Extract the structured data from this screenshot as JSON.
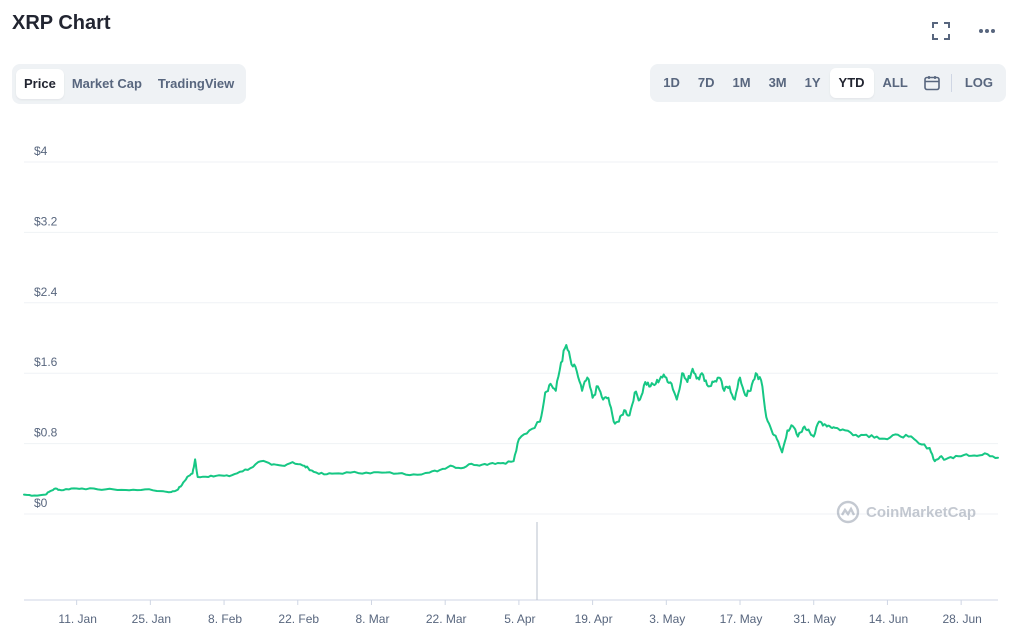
{
  "header": {
    "title": "XRP Chart"
  },
  "top_icons": [
    "fullscreen-icon",
    "more-icon"
  ],
  "view_tabs": [
    {
      "label": "Price",
      "active": true
    },
    {
      "label": "Market Cap",
      "active": false
    },
    {
      "label": "TradingView",
      "active": false
    }
  ],
  "range_tabs": [
    {
      "label": "1D",
      "active": false
    },
    {
      "label": "7D",
      "active": false
    },
    {
      "label": "1M",
      "active": false
    },
    {
      "label": "3M",
      "active": false
    },
    {
      "label": "1Y",
      "active": false
    },
    {
      "label": "YTD",
      "active": true
    },
    {
      "label": "ALL",
      "active": false
    }
  ],
  "log_label": "LOG",
  "watermark": "CoinMarketCap",
  "colors": {
    "line": "#16c784",
    "grid": "#eff2f5",
    "text": "#58667e",
    "accent": "#222531"
  },
  "chart_data": {
    "type": "line",
    "title": "",
    "xlabel": "",
    "ylabel": "",
    "ylim": [
      0,
      4
    ],
    "yticks": [
      {
        "value": 0,
        "label": "$0"
      },
      {
        "value": 0.8,
        "label": "$0.8"
      },
      {
        "value": 1.6,
        "label": "$1.6"
      },
      {
        "value": 2.4,
        "label": "$2.4"
      },
      {
        "value": 3.2,
        "label": "$3.2"
      },
      {
        "value": 4,
        "label": "$4"
      }
    ],
    "xticks": [
      {
        "day": 11,
        "label": "11. Jan"
      },
      {
        "day": 25,
        "label": "25. Jan"
      },
      {
        "day": 39,
        "label": "8. Feb"
      },
      {
        "day": 53,
        "label": "22. Feb"
      },
      {
        "day": 67,
        "label": "8. Mar"
      },
      {
        "day": 81,
        "label": "22. Mar"
      },
      {
        "day": 95,
        "label": "5. Apr"
      },
      {
        "day": 109,
        "label": "19. Apr"
      },
      {
        "day": 123,
        "label": "3. May"
      },
      {
        "day": 137,
        "label": "17. May"
      },
      {
        "day": 151,
        "label": "31. May"
      },
      {
        "day": 165,
        "label": "14. Jun"
      },
      {
        "day": 179,
        "label": "28. Jun"
      }
    ],
    "xrange": [
      1,
      186
    ],
    "grid": true,
    "series": [
      {
        "name": "",
        "points": [
          [
            1,
            0.22
          ],
          [
            3,
            0.21
          ],
          [
            5,
            0.22
          ],
          [
            6,
            0.26
          ],
          [
            7,
            0.29
          ],
          [
            8,
            0.27
          ],
          [
            10,
            0.29
          ],
          [
            12,
            0.29
          ],
          [
            15,
            0.28
          ],
          [
            18,
            0.28
          ],
          [
            21,
            0.27
          ],
          [
            24,
            0.28
          ],
          [
            27,
            0.26
          ],
          [
            29,
            0.25
          ],
          [
            30,
            0.27
          ],
          [
            31,
            0.33
          ],
          [
            32,
            0.42
          ],
          [
            33,
            0.46
          ],
          [
            33.5,
            0.62
          ],
          [
            34,
            0.42
          ],
          [
            36,
            0.42
          ],
          [
            38,
            0.44
          ],
          [
            40,
            0.43
          ],
          [
            42,
            0.48
          ],
          [
            44,
            0.52
          ],
          [
            46,
            0.6
          ],
          [
            48,
            0.56
          ],
          [
            50,
            0.55
          ],
          [
            52,
            0.59
          ],
          [
            54,
            0.55
          ],
          [
            55,
            0.52
          ],
          [
            56,
            0.48
          ],
          [
            58,
            0.45
          ],
          [
            60,
            0.46
          ],
          [
            63,
            0.47
          ],
          [
            66,
            0.47
          ],
          [
            69,
            0.47
          ],
          [
            72,
            0.46
          ],
          [
            75,
            0.45
          ],
          [
            78,
            0.47
          ],
          [
            80,
            0.5
          ],
          [
            82,
            0.55
          ],
          [
            84,
            0.52
          ],
          [
            86,
            0.57
          ],
          [
            88,
            0.56
          ],
          [
            90,
            0.58
          ],
          [
            92,
            0.58
          ],
          [
            94,
            0.6
          ],
          [
            95,
            0.85
          ],
          [
            97,
            0.95
          ],
          [
            99,
            1.05
          ],
          [
            100,
            1.38
          ],
          [
            101,
            1.48
          ],
          [
            102,
            1.4
          ],
          [
            103,
            1.72
          ],
          [
            104,
            1.92
          ],
          [
            105,
            1.7
          ],
          [
            106,
            1.62
          ],
          [
            107,
            1.4
          ],
          [
            108,
            1.55
          ],
          [
            109,
            1.32
          ],
          [
            110,
            1.45
          ],
          [
            111,
            1.3
          ],
          [
            112,
            1.32
          ],
          [
            113,
            1.05
          ],
          [
            114,
            1.05
          ],
          [
            115,
            1.18
          ],
          [
            116,
            1.12
          ],
          [
            117,
            1.38
          ],
          [
            118,
            1.3
          ],
          [
            119,
            1.5
          ],
          [
            120,
            1.45
          ],
          [
            121,
            1.48
          ],
          [
            122,
            1.56
          ],
          [
            123,
            1.55
          ],
          [
            124,
            1.48
          ],
          [
            125,
            1.3
          ],
          [
            126,
            1.6
          ],
          [
            127,
            1.5
          ],
          [
            128,
            1.65
          ],
          [
            129,
            1.55
          ],
          [
            130,
            1.58
          ],
          [
            131,
            1.45
          ],
          [
            132,
            1.5
          ],
          [
            133,
            1.55
          ],
          [
            134,
            1.4
          ],
          [
            135,
            1.45
          ],
          [
            136,
            1.3
          ],
          [
            137,
            1.55
          ],
          [
            138,
            1.35
          ],
          [
            139,
            1.4
          ],
          [
            140,
            1.6
          ],
          [
            141,
            1.52
          ],
          [
            142,
            1.1
          ],
          [
            143,
            0.95
          ],
          [
            144,
            0.85
          ],
          [
            145,
            0.7
          ],
          [
            146,
            0.95
          ],
          [
            147,
            1.0
          ],
          [
            148,
            0.88
          ],
          [
            149,
            0.98
          ],
          [
            150,
            0.96
          ],
          [
            151,
            0.88
          ],
          [
            152,
            1.05
          ],
          [
            153,
            1.02
          ],
          [
            154,
            1.0
          ],
          [
            155,
            0.98
          ],
          [
            157,
            0.95
          ],
          [
            159,
            0.9
          ],
          [
            161,
            0.9
          ],
          [
            163,
            0.88
          ],
          [
            165,
            0.85
          ],
          [
            167,
            0.9
          ],
          [
            169,
            0.88
          ],
          [
            171,
            0.8
          ],
          [
            173,
            0.75
          ],
          [
            174,
            0.6
          ],
          [
            175,
            0.65
          ],
          [
            176,
            0.62
          ],
          [
            178,
            0.66
          ],
          [
            180,
            0.68
          ],
          [
            182,
            0.66
          ],
          [
            184,
            0.68
          ],
          [
            186,
            0.64
          ]
        ]
      }
    ]
  }
}
